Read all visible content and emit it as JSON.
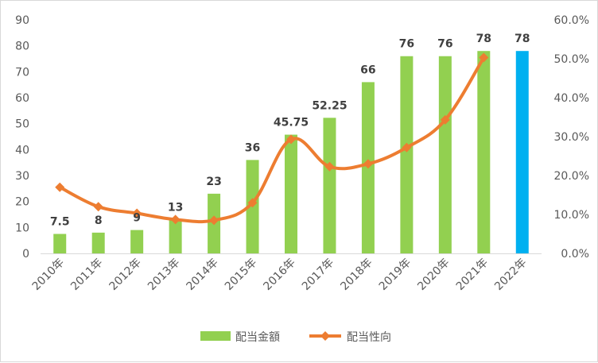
{
  "chart_data": {
    "type": "bar",
    "categories": [
      "2010年",
      "2011年",
      "2012年",
      "2013年",
      "2014年",
      "2015年",
      "2016年",
      "2017年",
      "2018年",
      "2019年",
      "2020年",
      "2021年",
      "2022年"
    ],
    "series": [
      {
        "name": "配当金額",
        "type": "bar",
        "axis": "left",
        "values": [
          7.5,
          8,
          9,
          13,
          23,
          36,
          45.75,
          52.25,
          66,
          76,
          76,
          78,
          78
        ],
        "data_labels": [
          "7.5",
          "8",
          "9",
          "13",
          "23",
          "36",
          "45.75",
          "52.25",
          "66",
          "76",
          "76",
          "78",
          "78"
        ],
        "color": "#92d050",
        "highlight_color": "#00b0f0",
        "highlight_index": 12
      },
      {
        "name": "配当性向",
        "type": "line",
        "axis": "right",
        "values": [
          0.17,
          0.12,
          0.103,
          0.087,
          0.085,
          0.13,
          0.293,
          0.223,
          0.23,
          0.272,
          0.343,
          0.503,
          null
        ],
        "color": "#ed7d31"
      }
    ],
    "y_left": {
      "lim": [
        0,
        90
      ],
      "ticks": [
        "0",
        "10",
        "20",
        "30",
        "40",
        "50",
        "60",
        "70",
        "80",
        "90"
      ]
    },
    "y_right": {
      "lim": [
        0,
        0.6
      ],
      "ticks": [
        "0.0%",
        "10.0%",
        "20.0%",
        "30.0%",
        "40.0%",
        "50.0%",
        "60.0%"
      ]
    },
    "grid": false,
    "legend": "bottom"
  }
}
